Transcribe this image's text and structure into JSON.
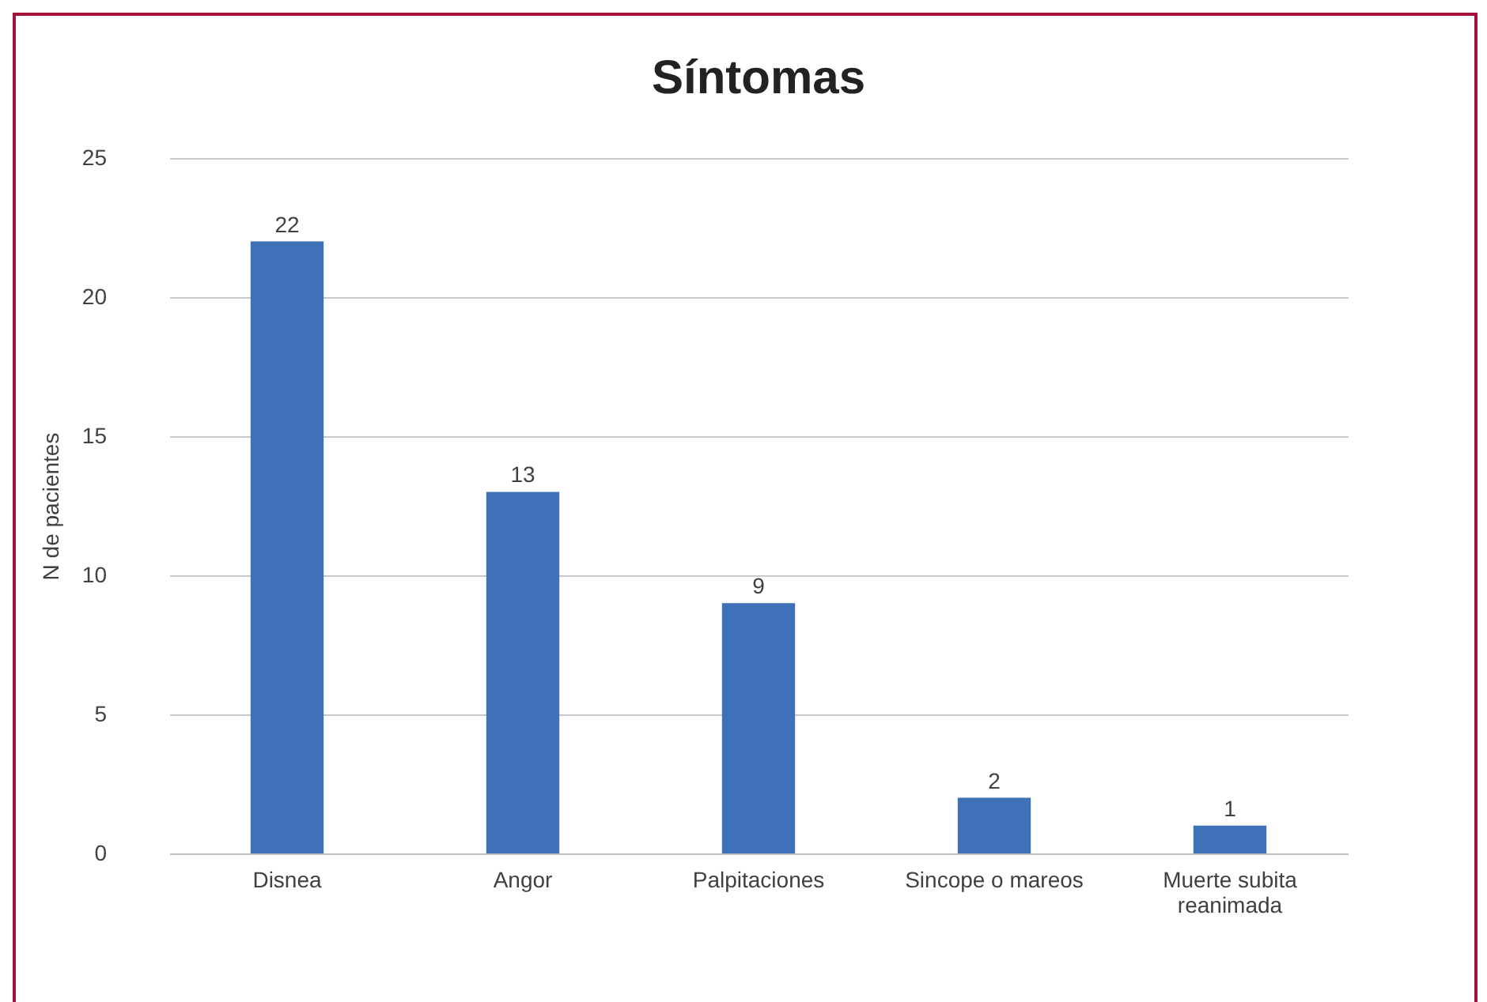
{
  "chart_data": {
    "type": "bar",
    "title": "Síntomas",
    "ylabel": "N de pacientes",
    "categories": [
      "Disnea",
      "Angor",
      "Palpitaciones",
      "Sincope o mareos",
      "Muerte subita reanimada"
    ],
    "values": [
      22,
      13,
      9,
      2,
      1
    ],
    "color": "#3f71b8",
    "ylim": [
      0,
      25
    ],
    "yticks": [
      0,
      5,
      10,
      15,
      20,
      25
    ],
    "grid": "y",
    "data_labels": true
  }
}
